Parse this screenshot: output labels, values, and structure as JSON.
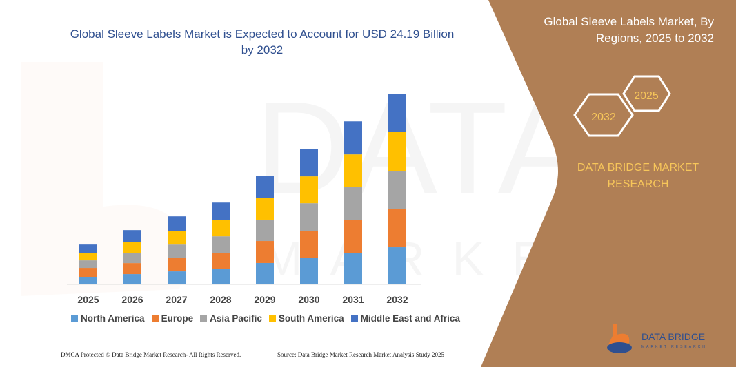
{
  "header": {
    "title": "Global Sleeve Labels Market is Expected to Account for USD 24.19 Billion by 2032"
  },
  "side_panel": {
    "title": "Global Sleeve Labels Market, By Regions, 2025 to 2032",
    "hex_start": "2025",
    "hex_end": "2032",
    "brand": "DATA BRIDGE MARKET RESEARCH",
    "logo_text": "DATA BRIDGE",
    "logo_subtext": "MARKET RESEARCH",
    "panel_color": "#b07f55",
    "accent_color": "#f7c65a"
  },
  "footer": {
    "left": "DMCA Protected © Data Bridge Market Research- All Rights Reserved.",
    "right": "Source: Data Bridge Market Research Market Analysis Study 2025"
  },
  "chart_data": {
    "type": "bar",
    "stacked": true,
    "title": "Global Sleeve Labels Market is Expected to Account for USD 24.19 Billion by 2032",
    "xlabel": "",
    "ylabel": "",
    "ylim": [
      0,
      24.19
    ],
    "grid": false,
    "legend_position": "bottom",
    "categories": [
      "2025",
      "2026",
      "2027",
      "2028",
      "2029",
      "2030",
      "2031",
      "2032"
    ],
    "series": [
      {
        "name": "North America",
        "color": "#5b9bd5",
        "values": [
          0.96,
          1.31,
          1.66,
          2.01,
          2.72,
          3.33,
          4.03,
          4.73
        ]
      },
      {
        "name": "Europe",
        "color": "#ed7d31",
        "values": [
          1.14,
          1.4,
          1.75,
          2.01,
          2.8,
          3.5,
          4.2,
          4.91
        ]
      },
      {
        "name": "Asia Pacific",
        "color": "#a5a5a5",
        "values": [
          0.96,
          1.31,
          1.66,
          2.1,
          2.72,
          3.5,
          4.2,
          4.82
        ]
      },
      {
        "name": "South America",
        "color": "#ffc000",
        "values": [
          0.96,
          1.4,
          1.75,
          2.1,
          2.8,
          3.42,
          4.12,
          4.91
        ]
      },
      {
        "name": "Middle East and Africa",
        "color": "#4472c4",
        "values": [
          1.05,
          1.49,
          1.84,
          2.19,
          2.72,
          3.5,
          4.2,
          4.82
        ]
      }
    ]
  }
}
